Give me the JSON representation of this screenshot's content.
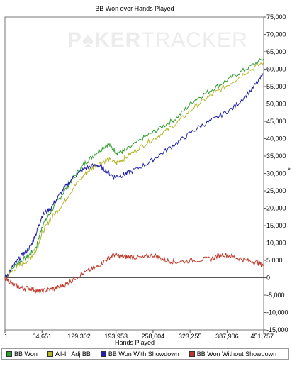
{
  "watermark": {
    "prefix": "P",
    "suit": "♠",
    "rest_bold": "KER",
    "rest_light": "TRACKER"
  },
  "chart_data": {
    "type": "line",
    "title": "BB Won over Hands Played",
    "xlabel": "Hands Played",
    "ylabel": "",
    "xlim": [
      1,
      451757
    ],
    "ylim": [
      -15000,
      75000
    ],
    "x_ticks": [
      "1",
      "64,651",
      "129,302",
      "193,953",
      "258,604",
      "323,255",
      "387,906",
      "451,757"
    ],
    "x_tick_values": [
      1,
      64651,
      129302,
      193953,
      258604,
      323255,
      387906,
      451757
    ],
    "y_ticks": [
      "-15,000",
      "-10,000",
      "-5,000",
      "0",
      "5,000",
      "10,000",
      "15,000",
      "20,000",
      "25,000",
      "30,000",
      "35,000",
      "40,000",
      "45,000",
      "50,000",
      "55,000",
      "60,000",
      "65,000",
      "70,000",
      "75,000"
    ],
    "y_tick_values": [
      -15000,
      -10000,
      -5000,
      0,
      5000,
      10000,
      15000,
      20000,
      25000,
      30000,
      35000,
      40000,
      45000,
      50000,
      55000,
      60000,
      65000,
      70000,
      75000
    ],
    "grid": false,
    "legend_position": "bottom",
    "series": [
      {
        "name": "BB Won",
        "color": "#2e9e2e",
        "x": [
          1,
          20000,
          40000,
          55000,
          65000,
          80000,
          100000,
          120000,
          140000,
          160000,
          180000,
          195000,
          210000,
          240000,
          270000,
          300000,
          330000,
          360000,
          390000,
          420000,
          451757
        ],
        "y": [
          0,
          4000,
          6000,
          9000,
          15000,
          19000,
          24000,
          29000,
          33000,
          36000,
          38500,
          36000,
          36500,
          40000,
          43000,
          46000,
          51000,
          54000,
          57000,
          60000,
          63000
        ]
      },
      {
        "name": "All-In Adj BB",
        "color": "#b5b52a",
        "x": [
          1,
          20000,
          40000,
          55000,
          65000,
          80000,
          100000,
          120000,
          140000,
          160000,
          180000,
          195000,
          210000,
          240000,
          270000,
          300000,
          330000,
          360000,
          390000,
          420000,
          451757
        ],
        "y": [
          0,
          3000,
          5000,
          8000,
          13000,
          17000,
          21000,
          26000,
          30000,
          32500,
          34000,
          33000,
          34500,
          38000,
          41000,
          44500,
          49000,
          52500,
          55500,
          59000,
          62000
        ]
      },
      {
        "name": "BB Won With Showdown",
        "color": "#2020a8",
        "x": [
          1,
          15000,
          30000,
          45000,
          55000,
          65000,
          80000,
          100000,
          120000,
          140000,
          160000,
          175000,
          190000,
          205000,
          220000,
          250000,
          280000,
          310000,
          340000,
          370000,
          400000,
          430000,
          451757
        ],
        "y": [
          0,
          3500,
          6500,
          9000,
          13000,
          18000,
          20000,
          25000,
          29000,
          31500,
          32500,
          31000,
          29000,
          29500,
          30500,
          33000,
          36500,
          40000,
          43500,
          46000,
          49000,
          54000,
          58500
        ]
      },
      {
        "name": "BB Won Without Showdown",
        "color": "#c0392b",
        "x": [
          1,
          15000,
          30000,
          45000,
          60000,
          75000,
          90000,
          105000,
          120000,
          140000,
          160000,
          175000,
          190000,
          205000,
          220000,
          240000,
          260000,
          280000,
          300000,
          330000,
          360000,
          380000,
          400000,
          420000,
          440000,
          451757
        ],
        "y": [
          0,
          -2000,
          -3000,
          -3000,
          -4000,
          -3500,
          -3000,
          -2000,
          -300,
          1500,
          3000,
          5000,
          6700,
          6000,
          6000,
          5800,
          6500,
          5000,
          4500,
          5000,
          5500,
          6800,
          6000,
          5000,
          4500,
          3500
        ]
      }
    ]
  }
}
